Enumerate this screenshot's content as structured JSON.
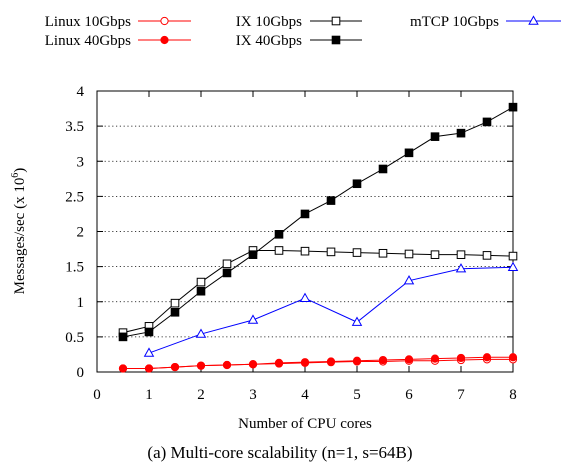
{
  "chart_data": {
    "type": "line",
    "caption": "(a) Multi-core scalability (n=1, s=64B)",
    "xlabel": "Number of CPU cores",
    "ylabel": "Messages/sec (x 10^6)",
    "xlim": [
      0,
      8
    ],
    "ylim": [
      0,
      4
    ],
    "xticks": [
      "0",
      "1",
      "2",
      "3",
      "4",
      "5",
      "6",
      "7",
      "8"
    ],
    "yticks": [
      "0",
      "0.5",
      "1",
      "1.5",
      "2",
      "2.5",
      "3",
      "3.5",
      "4"
    ],
    "grid": "horizontal dotted",
    "legend_position": "top",
    "series": [
      {
        "name": "Linux 10Gbps",
        "color": "#ff0000",
        "marker": "open-circle",
        "x": [
          0.5,
          1,
          1.5,
          2,
          2.5,
          3,
          3.5,
          4,
          4.5,
          5,
          5.5,
          6,
          6.5,
          7,
          7.5,
          8
        ],
        "y": [
          0.05,
          0.05,
          0.07,
          0.09,
          0.1,
          0.11,
          0.12,
          0.13,
          0.14,
          0.15,
          0.15,
          0.16,
          0.16,
          0.17,
          0.18,
          0.18
        ]
      },
      {
        "name": "Linux 40Gbps",
        "color": "#ff0000",
        "marker": "filled-circle",
        "x": [
          0.5,
          1,
          1.5,
          2,
          2.5,
          3,
          3.5,
          4,
          4.5,
          5,
          5.5,
          6,
          6.5,
          7,
          7.5,
          8
        ],
        "y": [
          0.05,
          0.05,
          0.07,
          0.09,
          0.1,
          0.11,
          0.13,
          0.14,
          0.15,
          0.16,
          0.17,
          0.18,
          0.19,
          0.2,
          0.21,
          0.21
        ]
      },
      {
        "name": "IX 10Gbps",
        "color": "#000000",
        "marker": "open-square",
        "x": [
          0.5,
          1,
          1.5,
          2,
          2.5,
          3,
          3.5,
          4,
          4.5,
          5,
          5.5,
          6,
          6.5,
          7,
          7.5,
          8
        ],
        "y": [
          0.56,
          0.65,
          0.98,
          1.28,
          1.54,
          1.73,
          1.73,
          1.72,
          1.71,
          1.7,
          1.69,
          1.68,
          1.67,
          1.67,
          1.66,
          1.65
        ]
      },
      {
        "name": "IX 40Gbps",
        "color": "#000000",
        "marker": "filled-square",
        "x": [
          0.5,
          1,
          1.5,
          2,
          2.5,
          3,
          3.5,
          4,
          4.5,
          5,
          5.5,
          6,
          6.5,
          7,
          7.5,
          8
        ],
        "y": [
          0.5,
          0.57,
          0.85,
          1.15,
          1.41,
          1.67,
          1.96,
          2.25,
          2.44,
          2.68,
          2.89,
          3.12,
          3.35,
          3.4,
          3.56,
          3.77
        ]
      },
      {
        "name": "mTCP 10Gbps",
        "color": "#0000ff",
        "marker": "open-triangle",
        "x": [
          1,
          2,
          3,
          4,
          5,
          6,
          7,
          8
        ],
        "y": [
          0.27,
          0.54,
          0.74,
          1.05,
          0.71,
          1.3,
          1.47,
          1.49
        ]
      }
    ]
  }
}
